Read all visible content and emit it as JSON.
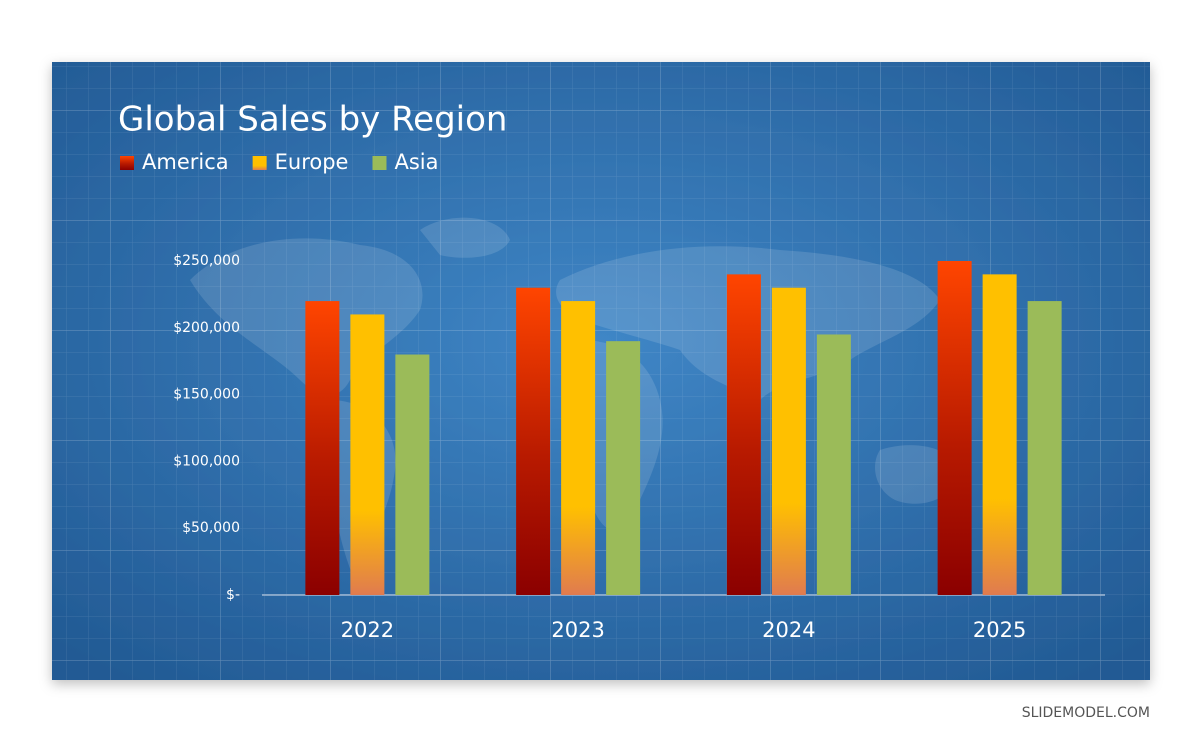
{
  "chart_data": {
    "type": "bar",
    "title": "Global Sales by Region",
    "categories": [
      "2022",
      "2023",
      "2024",
      "2025"
    ],
    "series": [
      {
        "name": "America",
        "color": "#ff4500",
        "values": [
          220000,
          230000,
          240000,
          250000
        ]
      },
      {
        "name": "Europe",
        "color": "#ffc000",
        "values": [
          210000,
          220000,
          230000,
          240000
        ]
      },
      {
        "name": "Asia",
        "color": "#9bbb59",
        "values": [
          180000,
          190000,
          195000,
          220000
        ]
      }
    ],
    "ylim": [
      0,
      250000
    ],
    "yticks": [
      {
        "value": 0,
        "label": "$-"
      },
      {
        "value": 50000,
        "label": "$50,000"
      },
      {
        "value": 100000,
        "label": "$100,000"
      },
      {
        "value": 150000,
        "label": "$150,000"
      },
      {
        "value": 200000,
        "label": "$200,000"
      },
      {
        "value": 250000,
        "label": "$250,000"
      }
    ],
    "legend": "top-left",
    "watermark": "SLIDEMODEL.COM"
  }
}
